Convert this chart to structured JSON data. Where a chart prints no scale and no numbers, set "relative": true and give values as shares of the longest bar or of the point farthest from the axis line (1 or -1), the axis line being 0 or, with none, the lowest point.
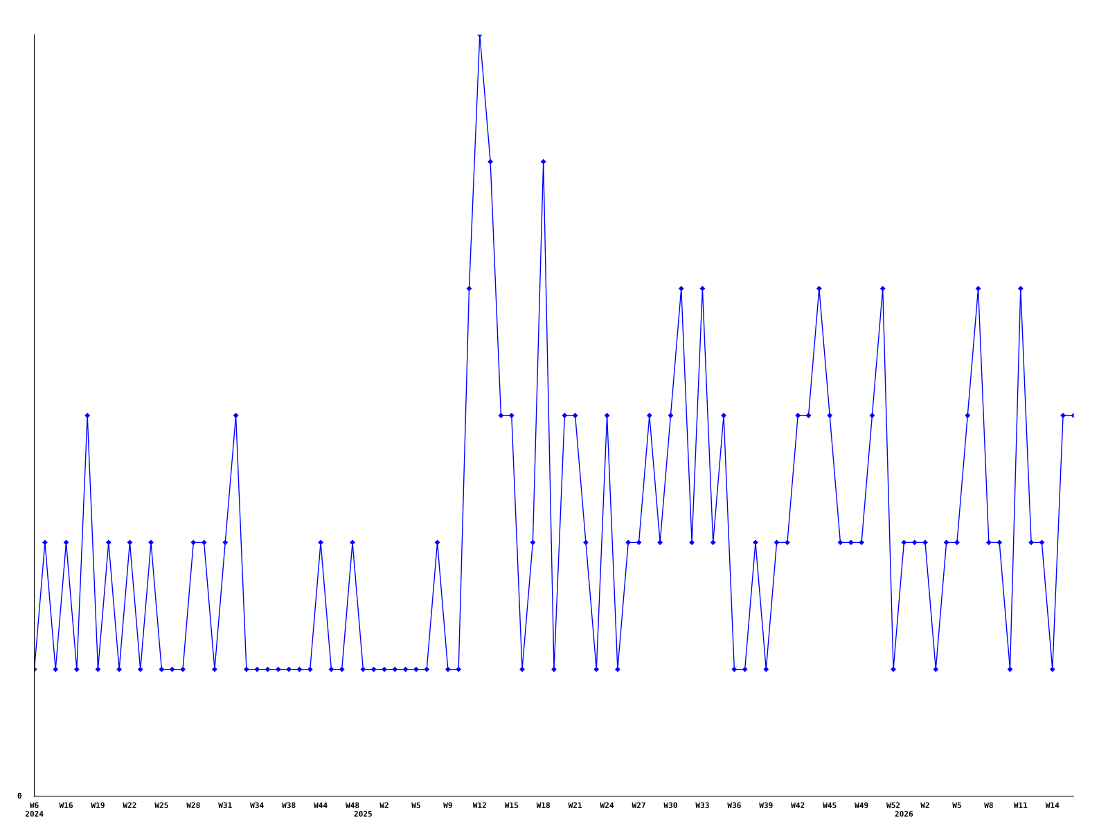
{
  "chart_data": {
    "type": "line",
    "relative": true,
    "marker": "diamond",
    "line_style": "solid",
    "categories": [
      "W6\n2024",
      null,
      null,
      "W16",
      null,
      null,
      "W19",
      null,
      null,
      "W22",
      null,
      null,
      "W25",
      null,
      null,
      "W28",
      null,
      null,
      "W31",
      null,
      null,
      "W34",
      null,
      null,
      "W38",
      null,
      null,
      "W44",
      null,
      null,
      "W48",
      "\n2025",
      null,
      "W2",
      null,
      null,
      "W5",
      null,
      null,
      "W9",
      null,
      null,
      "W12",
      null,
      null,
      "W15",
      null,
      null,
      "W18",
      null,
      null,
      "W21",
      null,
      null,
      "W24",
      null,
      null,
      "W27",
      null,
      null,
      "W30",
      null,
      null,
      "W33",
      null,
      null,
      "W36",
      null,
      null,
      "W39",
      null,
      null,
      "W42",
      null,
      null,
      "W45",
      null,
      null,
      "W49",
      null,
      null,
      "W52",
      "\n2026",
      null,
      "W2",
      null,
      null,
      "W5",
      null,
      null,
      "W8",
      null,
      null,
      "W11",
      null,
      null,
      "W14",
      null,
      null
    ],
    "series": [
      {
        "color": "#0000ff",
        "values": [
          0.1667,
          0.3333,
          0.1667,
          0.3333,
          0.1667,
          0.5,
          0.1667,
          0.3333,
          0.1667,
          0.3333,
          0.1667,
          0.3333,
          0.1667,
          0.1667,
          0.1667,
          0.3333,
          0.3333,
          0.1667,
          0.3333,
          0.5,
          0.1667,
          0.1667,
          0.1667,
          0.1667,
          0.1667,
          0.1667,
          0.1667,
          0.3333,
          0.1667,
          0.1667,
          0.3333,
          0.1667,
          0.1667,
          0.1667,
          0.1667,
          0.1667,
          0.1667,
          0.1667,
          0.3333,
          0.1667,
          0.1667,
          0.6667,
          1,
          0.8333,
          0.5,
          0.5,
          0.1667,
          0.3333,
          0.8333,
          0.1667,
          0.5,
          0.5,
          0.3333,
          0.1667,
          0.5,
          0.1667,
          0.3333,
          0.3333,
          0.5,
          0.3333,
          0.5,
          0.6667,
          0.3333,
          0.6667,
          0.3333,
          0.5,
          0.1667,
          0.1667,
          0.3333,
          0.1667,
          0.3333,
          0.3333,
          0.5,
          0.5,
          0.6667,
          0.5,
          0.3333,
          0.3333,
          0.3333,
          0.5,
          0.6667,
          0.1667,
          0.3333,
          0.3333,
          0.3333,
          0.1667,
          0.3333,
          0.3333,
          0.5,
          0.6667,
          0.3333,
          0.3333,
          0.1667,
          0.6667,
          0.3333,
          0.3333,
          0.1667,
          0.5,
          0.5
        ]
      }
    ],
    "annotations": [
      "0"
    ]
  }
}
